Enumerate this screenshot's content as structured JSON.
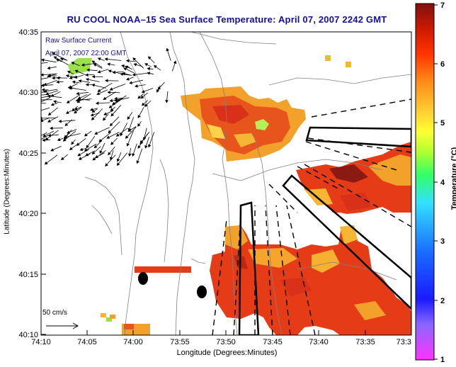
{
  "title": "RU COOL  NOAA–15  Sea Surface Temperature:  April 07, 2007 2242 GMT",
  "legend": {
    "current_label": "Raw Surface Current",
    "current_time": "April 07, 2007 22:00 GMT",
    "scale_label": "50 cm/s"
  },
  "axes": {
    "xlabel": "Longitude (Degrees:Minutes)",
    "ylabel": "Latitude (Degrees:Minutes)",
    "xticks": [
      "74:10",
      "74:05",
      "74:00",
      "73:55",
      "73:50",
      "73:45",
      "73:40",
      "73:35",
      "73:3"
    ],
    "yticks": [
      "40:35",
      "40:30",
      "40:25",
      "40:20",
      "40:15",
      "40:10"
    ]
  },
  "colorbar": {
    "label": "Temperature (°C)",
    "ticks": [
      "7",
      "6",
      "5",
      "4",
      "3",
      "2",
      "1"
    ],
    "range": [
      1,
      7
    ]
  },
  "colors": {
    "title": "#1010a0",
    "land": "#ffffff",
    "sst_warm": "#e63b17",
    "sst_cool": "#f2a12a"
  }
}
